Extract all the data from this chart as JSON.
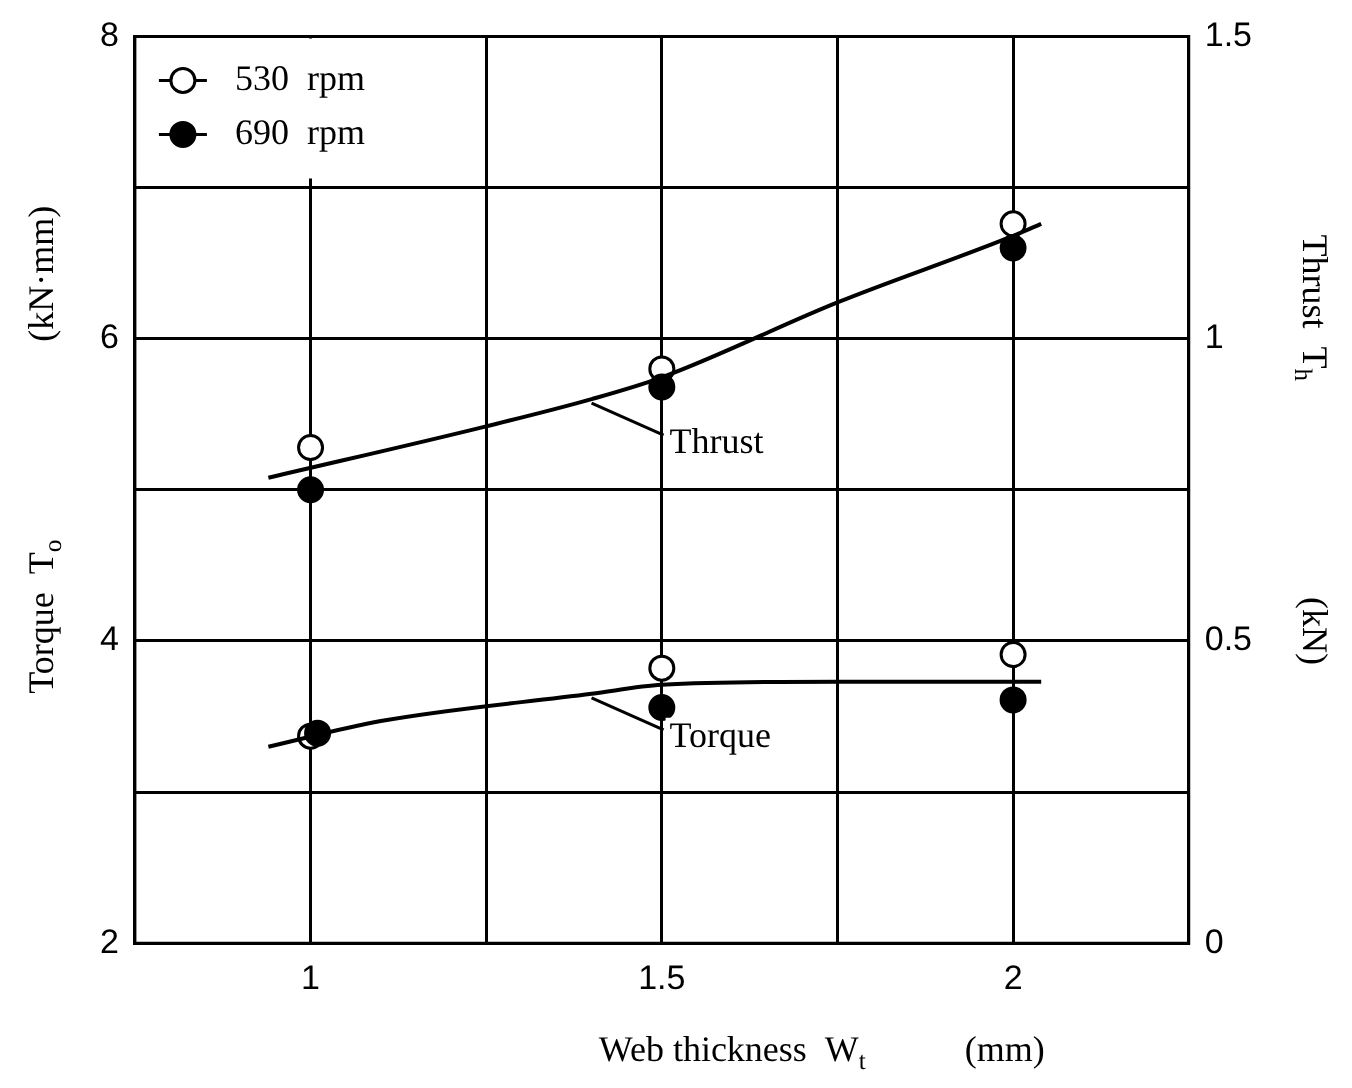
{
  "chart_data": {
    "type": "scatter",
    "xlabel": "Web thickness  W$_{t}$           (mm)",
    "ylabel": "Torque  T$_{o}$                      (kN·mm)",
    "y2label": "Thrust  T$_{h}$                        (kN)",
    "series": [
      {
        "name": "530 rpm",
        "color": "#ffffff",
        "x": [
          1,
          1.5,
          2
        ],
        "values": [
          3.37,
          3.82,
          3.91
        ]
      },
      {
        "name": "690 rpm",
        "color": "#000000",
        "x": [
          1.01,
          1.5,
          2
        ],
        "values": [
          3.39,
          3.56,
          3.61
        ]
      },
      {
        "color": "#ffffff",
        "axis": "y2",
        "x": [
          1,
          1.5,
          2
        ],
        "values": [
          0.82,
          0.95,
          1.19
        ]
      },
      {
        "color": "#000000",
        "axis": "y2",
        "x": [
          1,
          1.5,
          2
        ],
        "values": [
          0.75,
          0.92,
          1.15
        ]
      },
      {
        "name": "Thrust",
        "type": "line",
        "marker": "none",
        "color": "#000000",
        "axis": "y2",
        "x": [
          0.94,
          1.25,
          1.4,
          1.5,
          1.75,
          2,
          2.04
        ],
        "values": [
          0.77,
          0.855,
          0.9,
          0.936,
          1.06,
          1.17,
          1.19
        ]
      },
      {
        "name": "Torque",
        "type": "line",
        "marker": "none",
        "color": "#000000",
        "x": [
          0.94,
          1.1,
          1.4,
          1.5,
          1.75,
          2,
          2.04
        ],
        "values": [
          3.3,
          3.47,
          3.65,
          3.71,
          3.73,
          3.73,
          3.73
        ]
      }
    ],
    "xlim": [
      0.75,
      2.25
    ],
    "xticks": [
      1,
      {
        "value": 1.25,
        "label": null
      },
      1.5,
      {
        "value": 1.75,
        "label": null
      },
      2
    ],
    "ylim": [
      2,
      8
    ],
    "yticks": [
      2,
      {
        "value": 3,
        "label": null
      },
      4,
      {
        "value": 5,
        "label": null
      },
      6,
      {
        "value": 7,
        "label": null
      },
      8
    ],
    "y2lim": [
      0,
      1.5
    ],
    "y2ticks": [
      0,
      0.5,
      1,
      1.5
    ],
    "grid": true,
    "marker": "circle",
    "legend": "top left"
  }
}
